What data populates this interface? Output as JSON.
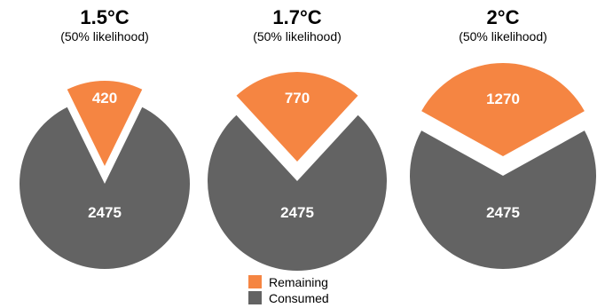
{
  "chart_data": [
    {
      "type": "pie",
      "title": "1.5°C",
      "subtitle": "(50% likelihood)",
      "series": [
        {
          "name": "Remaining",
          "value": 420
        },
        {
          "name": "Consumed",
          "value": 2475
        }
      ]
    },
    {
      "type": "pie",
      "title": "1.7°C",
      "subtitle": "(50% likelihood)",
      "series": [
        {
          "name": "Remaining",
          "value": 770
        },
        {
          "name": "Consumed",
          "value": 2475
        }
      ]
    },
    {
      "type": "pie",
      "title": "2°C",
      "subtitle": "(50% likelihood)",
      "series": [
        {
          "name": "Remaining",
          "value": 1270
        },
        {
          "name": "Consumed",
          "value": 2475
        }
      ]
    }
  ],
  "legend": {
    "placement": "bottom-center",
    "items": [
      {
        "label": "Remaining",
        "color": "#f58542"
      },
      {
        "label": "Consumed",
        "color": "#636363"
      }
    ]
  }
}
